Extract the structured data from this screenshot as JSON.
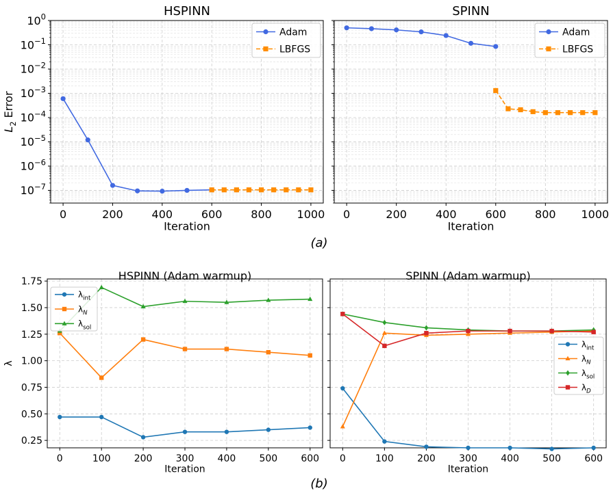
{
  "chart_data": [
    {
      "type": "line",
      "title": "HSPINN",
      "xlabel": "Iteration",
      "ylabel": "L_2 Error",
      "ylabel_math": {
        "base": "L",
        "sub": "2",
        "rest": " Error"
      },
      "yscale": "log",
      "xlim": [
        -50,
        1050
      ],
      "ylim": [
        3e-08,
        1
      ],
      "xticks": [
        "0",
        "200",
        "400",
        "600",
        "800",
        "1000"
      ],
      "yticks": [
        {
          "base": "10",
          "exp": "0"
        },
        {
          "base": "10",
          "exp": "−1"
        },
        {
          "base": "10",
          "exp": "−2"
        },
        {
          "base": "10",
          "exp": "−3"
        },
        {
          "base": "10",
          "exp": "−4"
        },
        {
          "base": "10",
          "exp": "−5"
        },
        {
          "base": "10",
          "exp": "−6"
        },
        {
          "base": "10",
          "exp": "−7"
        }
      ],
      "grid": true,
      "legend": "top-right",
      "series": [
        {
          "name": "Adam",
          "color": "#4169e1",
          "marker": "circle",
          "dash": "solid",
          "x": [
            0,
            100,
            200,
            300,
            400,
            500,
            600
          ],
          "y": [
            0.0006,
            1.2e-05,
            1.6e-07,
            9.5e-08,
            9.3e-08,
            1e-07,
            1.05e-07
          ]
        },
        {
          "name": "LBFGS",
          "color": "#ff8c00",
          "marker": "square",
          "dash": "dashed",
          "x": [
            600,
            650,
            700,
            750,
            800,
            850,
            900,
            950,
            1000
          ],
          "y": [
            1.05e-07,
            1.05e-07,
            1.05e-07,
            1.05e-07,
            1.05e-07,
            1.05e-07,
            1.05e-07,
            1.05e-07,
            1.05e-07
          ]
        }
      ]
    },
    {
      "type": "line",
      "title": "SPINN",
      "xlabel": "Iteration",
      "yscale": "log",
      "xlim": [
        -50,
        1050
      ],
      "ylim": [
        3e-08,
        1
      ],
      "xticks": [
        "0",
        "200",
        "400",
        "600",
        "800",
        "1000"
      ],
      "grid": true,
      "legend": "top-right",
      "series": [
        {
          "name": "Adam",
          "color": "#4169e1",
          "marker": "circle",
          "dash": "solid",
          "x": [
            0,
            100,
            200,
            300,
            400,
            500,
            600
          ],
          "y": [
            0.5,
            0.46,
            0.41,
            0.34,
            0.24,
            0.115,
            0.085
          ]
        },
        {
          "name": "LBFGS",
          "color": "#ff8c00",
          "marker": "square",
          "dash": "dashed",
          "x": [
            600,
            650,
            700,
            750,
            800,
            850,
            900,
            950,
            1000
          ],
          "y": [
            0.0013,
            0.00023,
            0.00021,
            0.000175,
            0.00016,
            0.00016,
            0.00016,
            0.00016,
            0.00016
          ]
        }
      ]
    },
    {
      "type": "line",
      "title": "HSPINN (Adam warmup)",
      "xlabel": "Iteration",
      "ylabel": "λ",
      "xlim": [
        -30,
        630
      ],
      "ylim": [
        0.18,
        1.77
      ],
      "xticks": [
        "0",
        "100",
        "200",
        "300",
        "400",
        "500",
        "600"
      ],
      "yticks": [
        "0.25",
        "0.50",
        "0.75",
        "1.00",
        "1.25",
        "1.50",
        "1.75"
      ],
      "grid": true,
      "legend": "top-left",
      "series": [
        {
          "name": "λ_int",
          "label": {
            "base": "λ",
            "sub": "int"
          },
          "color": "#1f77b4",
          "marker": "circle",
          "x": [
            0,
            100,
            200,
            300,
            400,
            500,
            600
          ],
          "y": [
            0.47,
            0.47,
            0.28,
            0.33,
            0.33,
            0.35,
            0.37
          ]
        },
        {
          "name": "λ_N",
          "label": {
            "base": "λ",
            "sub": "N"
          },
          "color": "#ff7f0e",
          "marker": "square",
          "x": [
            0,
            100,
            200,
            300,
            400,
            500,
            600
          ],
          "y": [
            1.26,
            0.84,
            1.2,
            1.11,
            1.11,
            1.08,
            1.05
          ]
        },
        {
          "name": "λ_sol",
          "label": {
            "base": "λ",
            "sub": "sol"
          },
          "color": "#2ca02c",
          "marker": "triangle",
          "x": [
            0,
            100,
            200,
            300,
            400,
            500,
            600
          ],
          "y": [
            1.28,
            1.69,
            1.51,
            1.56,
            1.55,
            1.57,
            1.58
          ]
        }
      ]
    },
    {
      "type": "line",
      "title": "SPINN (Adam warmup)",
      "xlabel": "Iteration",
      "xlim": [
        -30,
        630
      ],
      "ylim": [
        0.18,
        1.77
      ],
      "xticks": [
        "0",
        "100",
        "200",
        "300",
        "400",
        "500",
        "600"
      ],
      "grid": true,
      "legend": "right",
      "series": [
        {
          "name": "λ_int",
          "label": {
            "base": "λ",
            "sub": "int"
          },
          "color": "#1f77b4",
          "marker": "circle",
          "x": [
            0,
            100,
            200,
            300,
            400,
            500,
            600
          ],
          "y": [
            0.74,
            0.24,
            0.19,
            0.18,
            0.18,
            0.17,
            0.18
          ]
        },
        {
          "name": "λ_N",
          "label": {
            "base": "λ",
            "sub": "N"
          },
          "color": "#ff7f0e",
          "marker": "triangle",
          "x": [
            0,
            100,
            200,
            300,
            400,
            500,
            600
          ],
          "y": [
            0.38,
            1.26,
            1.24,
            1.25,
            1.26,
            1.27,
            1.28
          ]
        },
        {
          "name": "λ_sol",
          "label": {
            "base": "λ",
            "sub": "sol"
          },
          "color": "#2ca02c",
          "marker": "diamond",
          "x": [
            0,
            100,
            200,
            300,
            400,
            500,
            600
          ],
          "y": [
            1.44,
            1.36,
            1.31,
            1.29,
            1.28,
            1.28,
            1.29
          ]
        },
        {
          "name": "λ_D",
          "label": {
            "base": "λ",
            "sub": "D"
          },
          "color": "#d62728",
          "marker": "square",
          "x": [
            0,
            100,
            200,
            300,
            400,
            500,
            600
          ],
          "y": [
            1.44,
            1.14,
            1.26,
            1.28,
            1.28,
            1.28,
            1.27
          ]
        }
      ]
    }
  ],
  "captions": {
    "a": "(a)",
    "b": "(b)"
  }
}
